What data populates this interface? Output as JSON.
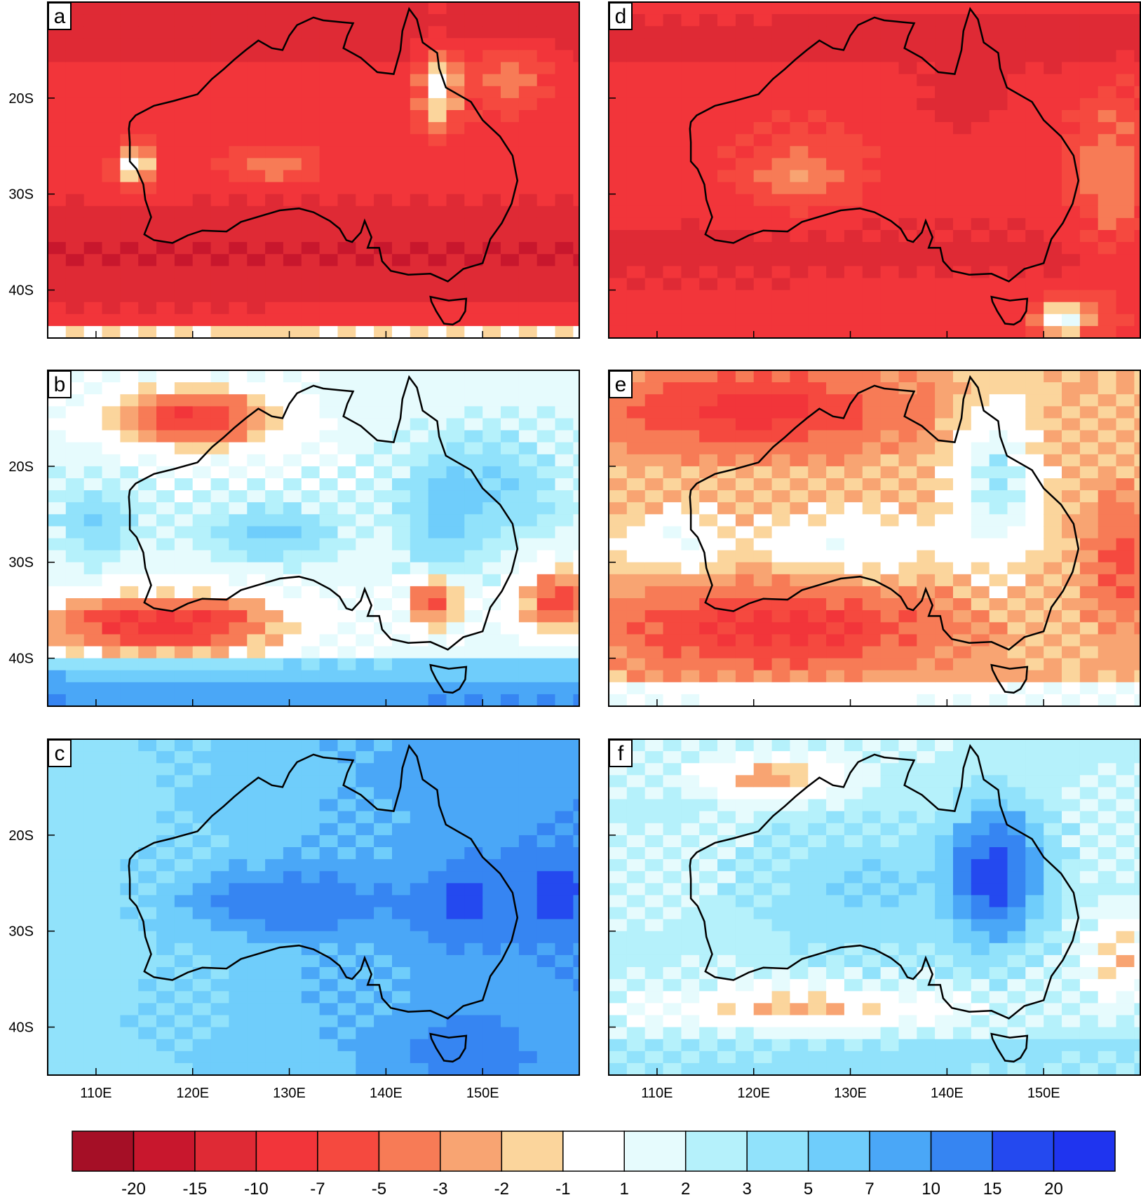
{
  "panels": [
    {
      "id": "a",
      "label": "a",
      "pattern": "mixed"
    },
    {
      "id": "b",
      "label": "b",
      "pattern": "mixed"
    },
    {
      "id": "c",
      "label": "c",
      "pattern": "mixed"
    },
    {
      "id": "d",
      "label": "d",
      "pattern": "mixed"
    },
    {
      "id": "e",
      "label": "e",
      "pattern": "mixed"
    },
    {
      "id": "f",
      "label": "f",
      "pattern": "mixed"
    }
  ],
  "lat_ticks": [
    "20S",
    "30S",
    "40S"
  ],
  "lon_ticks": [
    "110E",
    "120E",
    "130E",
    "140E",
    "150E"
  ],
  "colorbar": {
    "labels": [
      "-20",
      "-15",
      "-10",
      "-7",
      "-5",
      "-3",
      "-2",
      "-1",
      "1",
      "2",
      "3",
      "5",
      "7",
      "10",
      "15",
      "20"
    ],
    "colors": [
      "#a50f26",
      "#c8172d",
      "#df2a35",
      "#f2353a",
      "#f5493f",
      "#f77b56",
      "#f8a472",
      "#fbd59c",
      "#ffffff",
      "#e6fbfd",
      "#b5f1fb",
      "#91e2fb",
      "#6fcdfb",
      "#4aa7f7",
      "#3685f2",
      "#2449ef",
      "#1f34ef"
    ]
  },
  "chart_data": {
    "type": "heatmap",
    "panels": [
      "a",
      "b",
      "c",
      "d",
      "e",
      "f"
    ],
    "lat_ticks": [
      "20S",
      "30S",
      "40S"
    ],
    "lon_ticks": [
      "110E",
      "120E",
      "130E",
      "140E",
      "150E"
    ],
    "colorbar_levels": [
      -20,
      -15,
      -10,
      -7,
      -5,
      -3,
      -2,
      -1,
      1,
      2,
      3,
      5,
      7,
      10,
      15,
      20
    ],
    "lon_range": [
      105,
      160
    ],
    "lat_range": [
      -45,
      -10
    ]
  }
}
